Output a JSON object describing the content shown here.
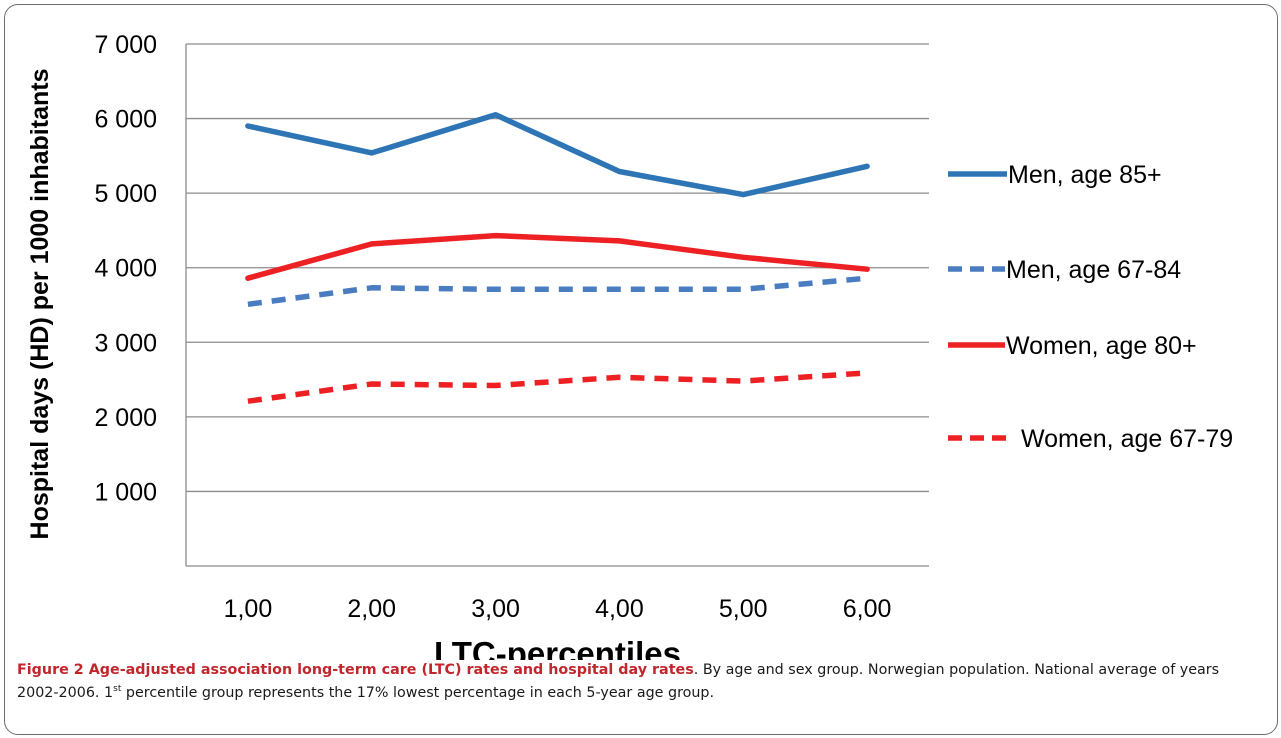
{
  "chart_data": {
    "type": "line",
    "xlabel": "LTC-percentiles",
    "ylabel": "Hospital days (HD)  per 1000 inhabitants",
    "categories": [
      "1,00",
      "2,00",
      "3,00",
      "4,00",
      "5,00",
      "6,00"
    ],
    "x": [
      1,
      2,
      3,
      4,
      5,
      6
    ],
    "ylim": [
      0,
      7000
    ],
    "yticks": [
      1000,
      2000,
      3000,
      4000,
      5000,
      6000,
      7000
    ],
    "ytick_labels": [
      "1 000",
      "2 000",
      "3 000",
      "4 000",
      "5 000",
      "6 000",
      "7 000"
    ],
    "grid": "horizontal",
    "legend_position": "right",
    "series": [
      {
        "name": "Men, age 85+",
        "values": [
          5900,
          5540,
          6050,
          5290,
          4980,
          5360
        ],
        "color": "#2e75b6",
        "style": "solid"
      },
      {
        "name": "Men, age 67-84",
        "values": [
          3510,
          3730,
          3710,
          3710,
          3710,
          3860
        ],
        "color": "#4a7cc0",
        "style": "dashed"
      },
      {
        "name": "Women, age 80+",
        "values": [
          3860,
          4320,
          4430,
          4360,
          4140,
          3980
        ],
        "color": "#ed2024",
        "style": "solid"
      },
      {
        "name": "Women, age 67-79",
        "values": [
          2210,
          2440,
          2420,
          2530,
          2480,
          2590
        ],
        "color": "#ed2024",
        "style": "dashed"
      }
    ]
  },
  "caption": {
    "label": "Figure 2 Age-adjusted association long-term care (LTC) rates and hospital day rates",
    "text_part1": ". By age and sex group. Norwegian population. National average of years 2002-2006. 1",
    "superscript": "st",
    "text_part2": " percentile group represents the 17% lowest percentage in each 5-year age group."
  }
}
